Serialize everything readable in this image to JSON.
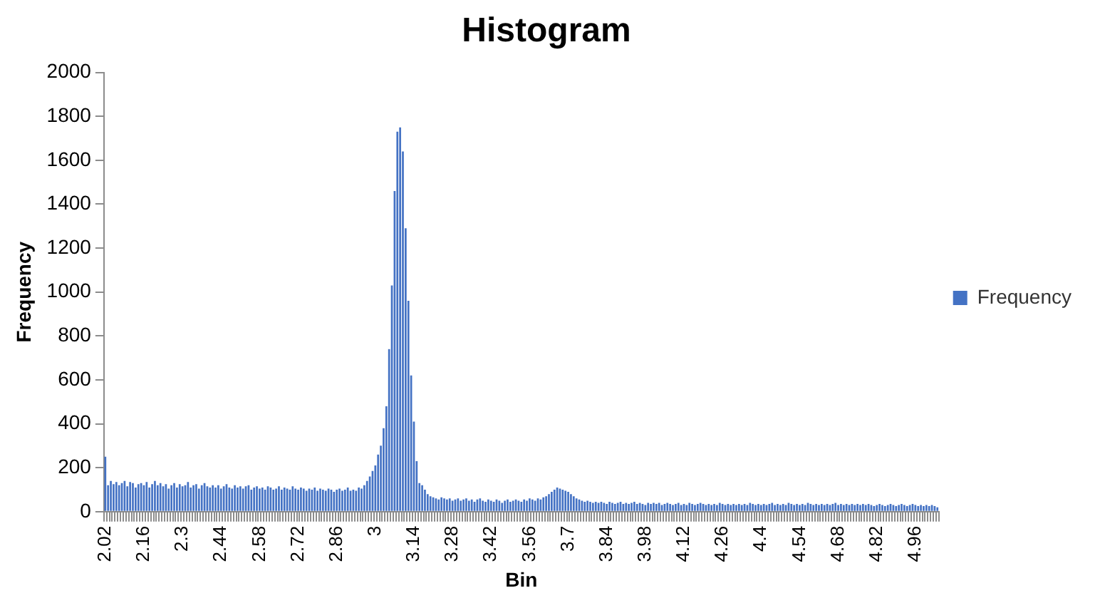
{
  "chart_data": {
    "type": "bar",
    "title": "Histogram",
    "xlabel": "Bin",
    "ylabel": "Frequency",
    "categories": [
      "2.02",
      null,
      null,
      null,
      null,
      null,
      null,
      null,
      null,
      null,
      null,
      null,
      null,
      null,
      "2.16",
      null,
      null,
      null,
      null,
      null,
      null,
      null,
      null,
      null,
      null,
      null,
      null,
      null,
      "2.3",
      null,
      null,
      null,
      null,
      null,
      null,
      null,
      null,
      null,
      null,
      null,
      null,
      null,
      "2.44",
      null,
      null,
      null,
      null,
      null,
      null,
      null,
      null,
      null,
      null,
      null,
      null,
      null,
      "2.58",
      null,
      null,
      null,
      null,
      null,
      null,
      null,
      null,
      null,
      null,
      null,
      null,
      null,
      "2.72",
      null,
      null,
      null,
      null,
      null,
      null,
      null,
      null,
      null,
      null,
      null,
      null,
      null,
      "2.86",
      null,
      null,
      null,
      null,
      null,
      null,
      null,
      null,
      null,
      null,
      null,
      null,
      null,
      "3",
      null,
      null,
      null,
      null,
      null,
      null,
      null,
      null,
      null,
      null,
      null,
      null,
      null,
      "3.14",
      null,
      null,
      null,
      null,
      null,
      null,
      null,
      null,
      null,
      null,
      null,
      null,
      null,
      "3.28",
      null,
      null,
      null,
      null,
      null,
      null,
      null,
      null,
      null,
      null,
      null,
      null,
      null,
      "3.42",
      null,
      null,
      null,
      null,
      null,
      null,
      null,
      null,
      null,
      null,
      null,
      null,
      null,
      "3.56",
      null,
      null,
      null,
      null,
      null,
      null,
      null,
      null,
      null,
      null,
      null,
      null,
      null,
      "3.7",
      null,
      null,
      null,
      null,
      null,
      null,
      null,
      null,
      null,
      null,
      null,
      null,
      null,
      "3.84",
      null,
      null,
      null,
      null,
      null,
      null,
      null,
      null,
      null,
      null,
      null,
      null,
      null,
      "3.98",
      null,
      null,
      null,
      null,
      null,
      null,
      null,
      null,
      null,
      null,
      null,
      null,
      null,
      "4.12",
      null,
      null,
      null,
      null,
      null,
      null,
      null,
      null,
      null,
      null,
      null,
      null,
      null,
      "4.26",
      null,
      null,
      null,
      null,
      null,
      null,
      null,
      null,
      null,
      null,
      null,
      null,
      null,
      "4.4",
      null,
      null,
      null,
      null,
      null,
      null,
      null,
      null,
      null,
      null,
      null,
      null,
      null,
      "4.54",
      null,
      null,
      null,
      null,
      null,
      null,
      null,
      null,
      null,
      null,
      null,
      null,
      null,
      "4.68",
      null,
      null,
      null,
      null,
      null,
      null,
      null,
      null,
      null,
      null,
      null,
      null,
      null,
      "4.82",
      null,
      null,
      null,
      null,
      null,
      null,
      null,
      null,
      null,
      null,
      null,
      null,
      null,
      "4.96",
      null,
      null,
      null,
      null,
      null,
      null,
      null,
      null
    ],
    "series": [
      {
        "name": "Frequency",
        "color": "#4472c4",
        "values": [
          250,
          120,
          140,
          125,
          135,
          120,
          130,
          140,
          115,
          135,
          130,
          110,
          125,
          130,
          120,
          135,
          110,
          125,
          140,
          120,
          130,
          115,
          125,
          105,
          120,
          130,
          110,
          125,
          115,
          120,
          135,
          110,
          120,
          125,
          105,
          120,
          130,
          115,
          110,
          120,
          110,
          120,
          105,
          115,
          125,
          110,
          105,
          120,
          110,
          115,
          105,
          115,
          120,
          100,
          110,
          115,
          105,
          110,
          100,
          115,
          110,
          100,
          105,
          115,
          100,
          110,
          105,
          100,
          115,
          105,
          100,
          110,
          105,
          95,
          105,
          100,
          110,
          95,
          105,
          100,
          95,
          105,
          100,
          90,
          100,
          105,
          95,
          100,
          110,
          95,
          100,
          95,
          110,
          105,
          120,
          140,
          160,
          185,
          210,
          260,
          300,
          380,
          480,
          740,
          1030,
          1460,
          1730,
          1750,
          1640,
          1290,
          960,
          620,
          410,
          230,
          130,
          120,
          100,
          80,
          70,
          65,
          60,
          55,
          65,
          60,
          55,
          60,
          50,
          55,
          60,
          50,
          55,
          60,
          50,
          55,
          45,
          55,
          60,
          50,
          45,
          55,
          50,
          45,
          55,
          50,
          40,
          50,
          55,
          45,
          50,
          55,
          50,
          45,
          55,
          50,
          60,
          55,
          50,
          60,
          55,
          65,
          70,
          80,
          90,
          100,
          110,
          105,
          100,
          95,
          90,
          80,
          70,
          60,
          55,
          50,
          45,
          50,
          45,
          40,
          45,
          40,
          45,
          40,
          35,
          45,
          40,
          35,
          40,
          45,
          35,
          40,
          35,
          40,
          45,
          35,
          40,
          35,
          30,
          40,
          35,
          40,
          35,
          40,
          30,
          35,
          40,
          35,
          30,
          35,
          40,
          30,
          35,
          30,
          40,
          35,
          30,
          35,
          40,
          35,
          30,
          35,
          30,
          35,
          30,
          40,
          35,
          30,
          35,
          30,
          35,
          30,
          35,
          30,
          35,
          30,
          40,
          35,
          30,
          35,
          30,
          35,
          30,
          35,
          40,
          30,
          35,
          30,
          35,
          30,
          40,
          35,
          30,
          35,
          30,
          35,
          30,
          40,
          35,
          30,
          35,
          30,
          35,
          30,
          35,
          30,
          35,
          40,
          30,
          35,
          30,
          35,
          30,
          35,
          30,
          35,
          30,
          35,
          30,
          35,
          30,
          25,
          30,
          35,
          30,
          25,
          30,
          35,
          30,
          25,
          30,
          35,
          30,
          25,
          30,
          35,
          30,
          25,
          30,
          25,
          30,
          25,
          30,
          25,
          20
        ]
      }
    ],
    "ylim": [
      0,
      2000
    ],
    "yticks": [
      0,
      200,
      400,
      600,
      800,
      1000,
      1200,
      1400,
      1600,
      1800,
      2000
    ],
    "legend": "right"
  }
}
